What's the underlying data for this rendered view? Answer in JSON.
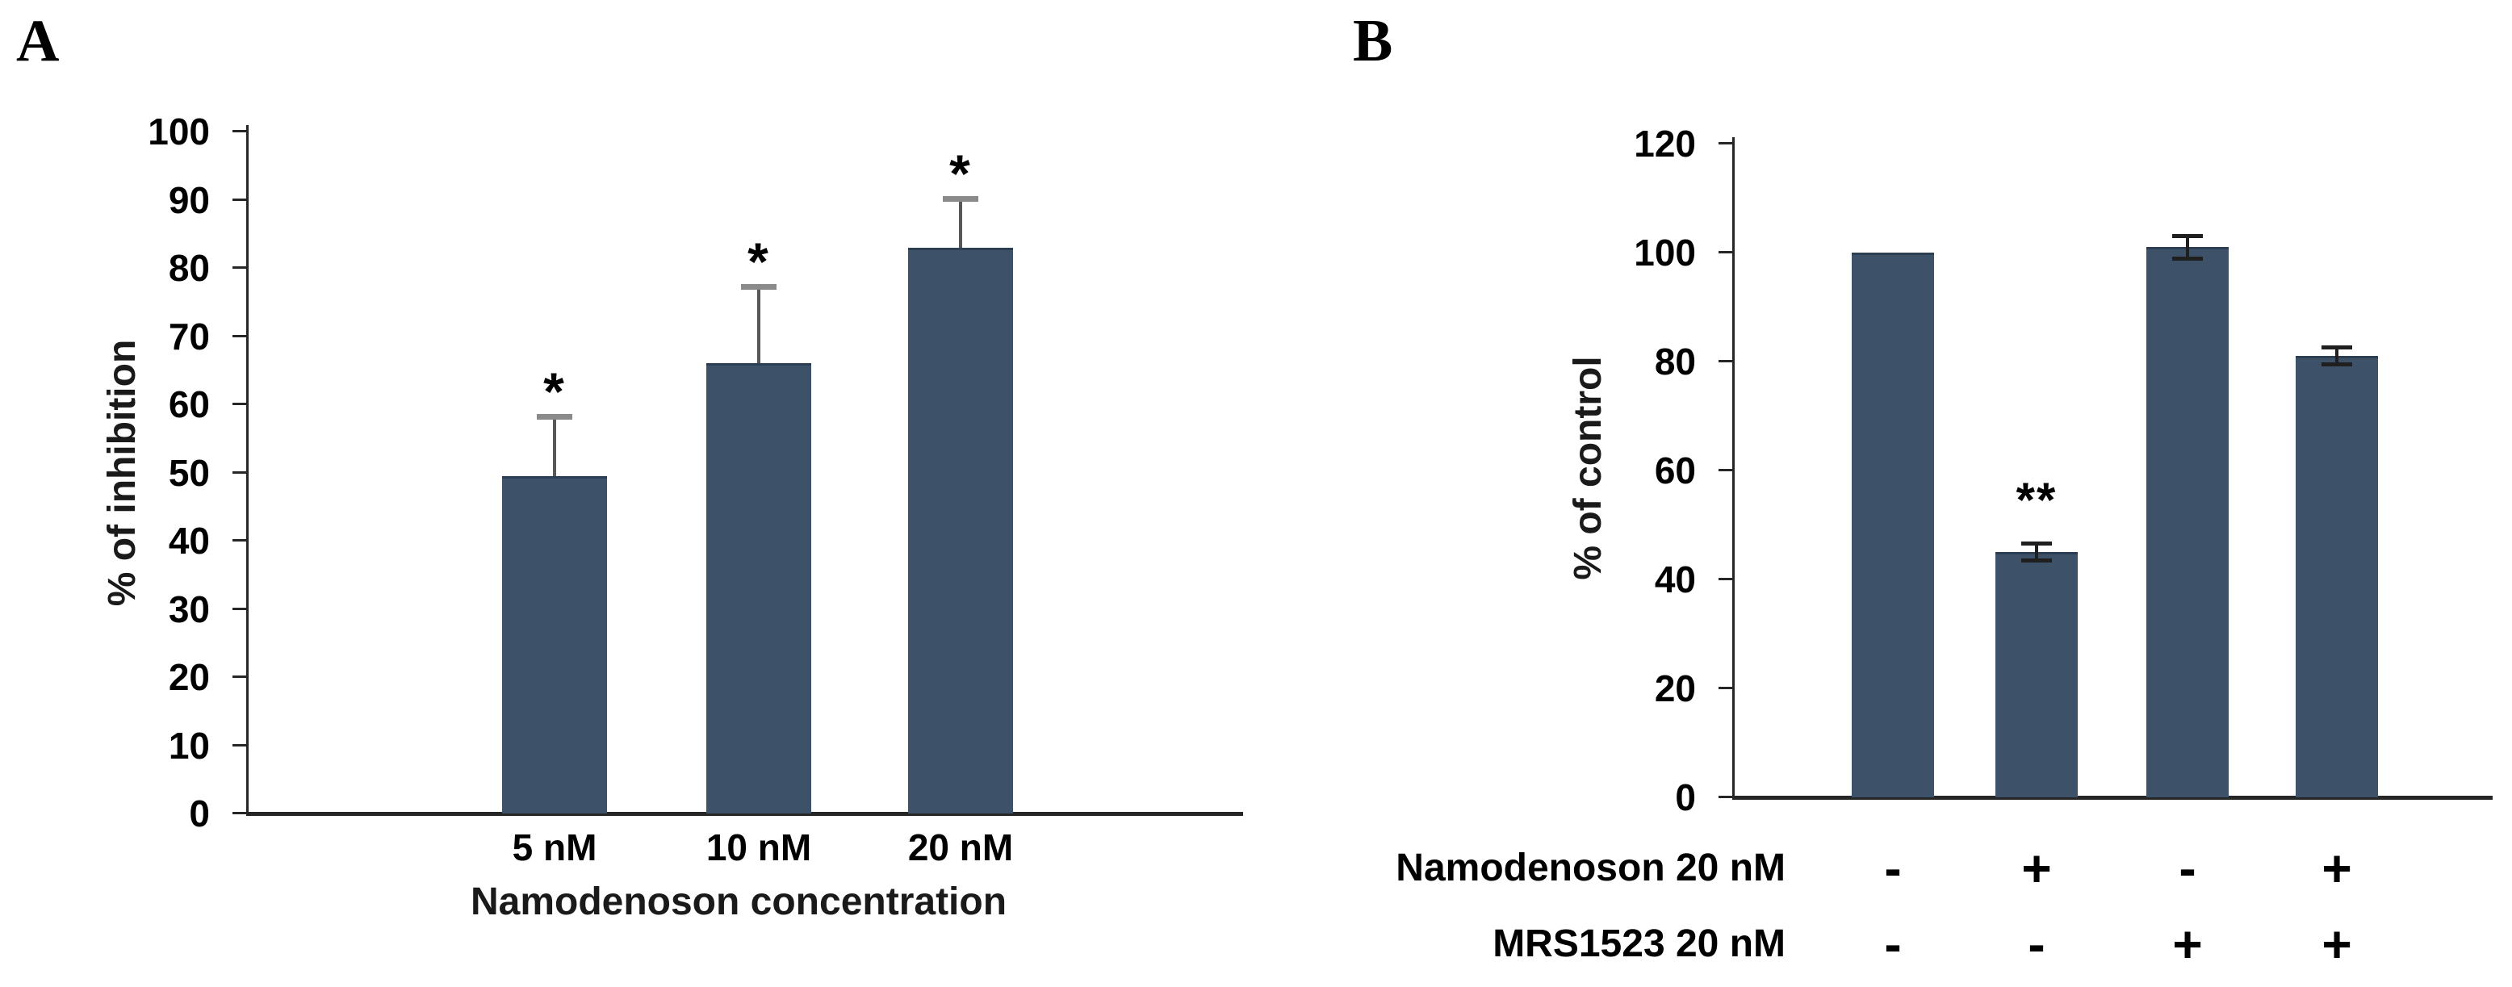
{
  "figure": {
    "panels": {
      "a": {
        "letter": "A"
      },
      "b": {
        "letter": "B"
      }
    }
  },
  "chart_data": [
    {
      "panel": "A",
      "type": "bar",
      "title": "",
      "categories": [
        "5 nM",
        "10 nM",
        "20 nM"
      ],
      "values": [
        49.5,
        66,
        83
      ],
      "error_upper": [
        8.5,
        11,
        7
      ],
      "significance": [
        "*",
        "*",
        "*"
      ],
      "xlabel": "Namodenoson concentration",
      "ylabel": "% of inhibition",
      "ylim": [
        0,
        100
      ],
      "ytick_step": 10,
      "ytick_labels": [
        "0",
        "10",
        "20",
        "30",
        "40",
        "50",
        "60",
        "70",
        "80",
        "90",
        "100"
      ],
      "bar_color": "#3d5268",
      "grid": false,
      "legend": null
    },
    {
      "panel": "B",
      "type": "bar",
      "title": "",
      "values": [
        100,
        45,
        101,
        81
      ],
      "error_upper": [
        0,
        1.5,
        2,
        1.5
      ],
      "significance": [
        "",
        "**",
        "",
        ""
      ],
      "condition_rows": [
        {
          "label": "Namodenoson 20 nM",
          "signs": [
            "-",
            "+",
            "-",
            "+"
          ]
        },
        {
          "label": "MRS1523 20 nM",
          "signs": [
            "-",
            "-",
            "+",
            "+"
          ]
        }
      ],
      "ylabel": "% of control",
      "ylim": [
        0,
        120
      ],
      "ytick_step": 20,
      "ytick_labels": [
        "0",
        "20",
        "40",
        "60",
        "80",
        "100",
        "120"
      ],
      "bar_color": "#3d5268",
      "grid": false,
      "legend": null
    }
  ]
}
